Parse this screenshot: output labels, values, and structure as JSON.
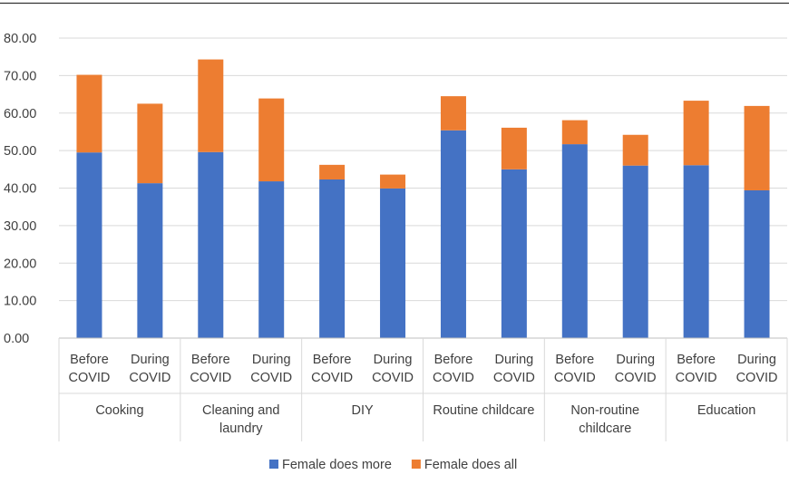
{
  "chart_data": {
    "type": "bar",
    "stacked": true,
    "title": "",
    "xlabel": "",
    "ylabel": "",
    "ylim": [
      0,
      80
    ],
    "y_ticks": [
      "0.00",
      "10.00",
      "20.00",
      "30.00",
      "40.00",
      "50.00",
      "60.00",
      "70.00",
      "80.00"
    ],
    "grid": true,
    "legend_position": "bottom",
    "groups": [
      {
        "lines": [
          "Cooking"
        ],
        "bars": [
          [
            "Before",
            "COVID"
          ],
          [
            "During",
            "COVID"
          ]
        ]
      },
      {
        "lines": [
          "Cleaning and",
          "laundry"
        ],
        "bars": [
          [
            "Before",
            "COVID"
          ],
          [
            "During",
            "COVID"
          ]
        ]
      },
      {
        "lines": [
          "DIY"
        ],
        "bars": [
          [
            "Before",
            "COVID"
          ],
          [
            "During",
            "COVID"
          ]
        ]
      },
      {
        "lines": [
          "Routine childcare"
        ],
        "bars": [
          [
            "Before",
            "COVID"
          ],
          [
            "During",
            "COVID"
          ]
        ]
      },
      {
        "lines": [
          "Non-routine",
          "childcare"
        ],
        "bars": [
          [
            "Before",
            "COVID"
          ],
          [
            "During",
            "COVID"
          ]
        ]
      },
      {
        "lines": [
          "Education"
        ],
        "bars": [
          [
            "Before",
            "COVID"
          ],
          [
            "During",
            "COVID"
          ]
        ]
      }
    ],
    "series": [
      {
        "name": "Female does more",
        "color": "#4472C4",
        "values": [
          49.5,
          41.3,
          49.6,
          41.8,
          42.3,
          39.9,
          55.4,
          45.0,
          51.7,
          46.0,
          46.1,
          39.4
        ]
      },
      {
        "name": "Female does all",
        "color": "#ED7D31",
        "values": [
          20.7,
          21.2,
          24.7,
          22.1,
          3.9,
          3.7,
          9.1,
          11.1,
          6.4,
          8.2,
          17.2,
          22.5
        ]
      }
    ]
  }
}
